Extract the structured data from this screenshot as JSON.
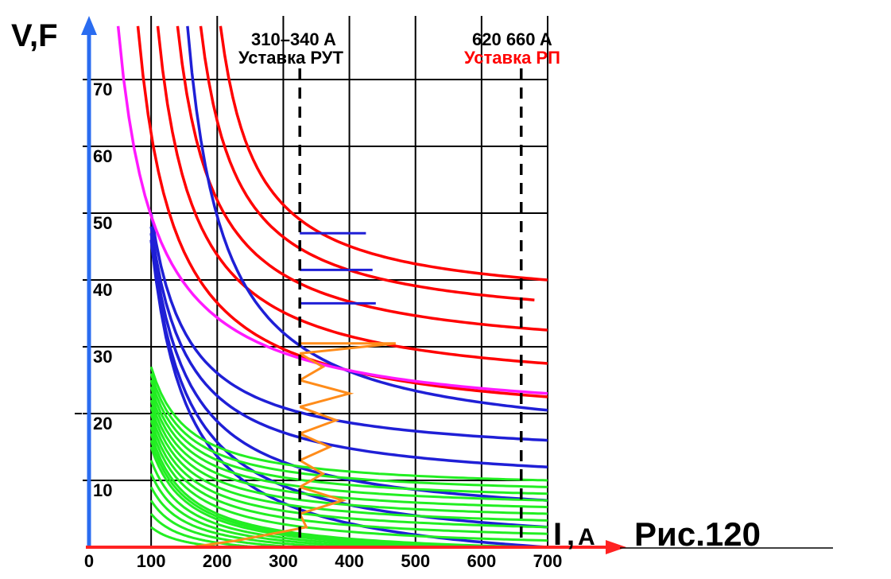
{
  "chart_data": {
    "type": "line",
    "title": "Рис.120",
    "ylabel": "V,F",
    "xlabel_main": "I",
    "xlabel_unit": "A",
    "xlim": [
      0,
      700
    ],
    "ylim": [
      0,
      70
    ],
    "x_ticks": [
      "0",
      "100",
      "200",
      "300",
      "400",
      "500",
      "600",
      "700"
    ],
    "y_ticks": [
      "10",
      "20",
      "30",
      "40",
      "50",
      "60",
      "70"
    ],
    "grid": true,
    "annotations": {
      "rut_range": "310–340 A",
      "rut_label": "Уставка  РУТ",
      "rp_range": "620  660 A",
      "rp_label": "Уставка  РП",
      "rut_current": 325,
      "rp_current": 660
    },
    "colors": {
      "red": "#ff0000",
      "blue": "#1f1fd6",
      "magenta": "#ff19ff",
      "green": "#22ee22",
      "orange": "#ff8c1a",
      "axis_v": "#2a6cf0",
      "axis_i": "#ff2222",
      "grid": "#000000"
    },
    "series": [
      {
        "color": "red",
        "x": [
          80,
          700
        ],
        "y": [
          78,
          22.5
        ]
      },
      {
        "color": "red",
        "x": [
          110,
          700
        ],
        "y": [
          78,
          27.5
        ]
      },
      {
        "color": "red",
        "x": [
          140,
          700
        ],
        "y": [
          78,
          32.5
        ]
      },
      {
        "color": "red",
        "x": [
          175,
          680
        ],
        "y": [
          78,
          37
        ]
      },
      {
        "color": "red",
        "x": [
          205,
          700
        ],
        "y": [
          78,
          40
        ]
      },
      {
        "color": "blue",
        "x": [
          155,
          700
        ],
        "y": [
          78,
          20.5
        ]
      },
      {
        "color": "blue",
        "x": [
          100,
          700
        ],
        "y": [
          50,
          16
        ]
      },
      {
        "color": "blue",
        "x": [
          100,
          700
        ],
        "y": [
          48,
          12
        ]
      },
      {
        "color": "blue",
        "x": [
          100,
          700
        ],
        "y": [
          47,
          7
        ]
      },
      {
        "color": "blue",
        "x": [
          100,
          700
        ],
        "y": [
          46,
          3
        ]
      },
      {
        "color": "blue",
        "x": [
          100,
          700
        ],
        "y": [
          46,
          0
        ]
      },
      {
        "color": "magenta",
        "x": [
          50,
          700
        ],
        "y": [
          78,
          23
        ]
      },
      {
        "color": "green",
        "x": [
          100,
          700
        ],
        "y": [
          27,
          10
        ]
      },
      {
        "color": "green",
        "x": [
          100,
          700
        ],
        "y": [
          26,
          9
        ]
      },
      {
        "color": "green",
        "x": [
          100,
          700
        ],
        "y": [
          25,
          8
        ]
      },
      {
        "color": "green",
        "x": [
          100,
          700
        ],
        "y": [
          24,
          7
        ]
      },
      {
        "color": "green",
        "x": [
          100,
          700
        ],
        "y": [
          23,
          6
        ]
      },
      {
        "color": "green",
        "x": [
          100,
          700
        ],
        "y": [
          22,
          5
        ]
      },
      {
        "color": "green",
        "x": [
          100,
          700
        ],
        "y": [
          21,
          4
        ]
      },
      {
        "color": "green",
        "x": [
          100,
          700
        ],
        "y": [
          20,
          3
        ]
      },
      {
        "color": "green",
        "x": [
          100,
          700
        ],
        "y": [
          19,
          2
        ]
      },
      {
        "color": "green",
        "x": [
          100,
          700
        ],
        "y": [
          18,
          1
        ]
      },
      {
        "color": "green",
        "x": [
          100,
          680
        ],
        "y": [
          17,
          0
        ]
      },
      {
        "color": "green",
        "x": [
          100,
          620
        ],
        "y": [
          16,
          0
        ]
      },
      {
        "color": "green",
        "x": [
          100,
          560
        ],
        "y": [
          15,
          0
        ]
      },
      {
        "color": "green",
        "x": [
          100,
          500
        ],
        "y": [
          13,
          0
        ]
      },
      {
        "color": "green",
        "x": [
          100,
          440
        ],
        "y": [
          11,
          0
        ]
      },
      {
        "color": "green",
        "x": [
          100,
          380
        ],
        "y": [
          9,
          0
        ]
      },
      {
        "color": "green",
        "x": [
          100,
          320
        ],
        "y": [
          7,
          0
        ]
      },
      {
        "color": "green",
        "x": [
          100,
          260
        ],
        "y": [
          5,
          0
        ]
      },
      {
        "color": "green",
        "x": [
          100,
          210
        ],
        "y": [
          3,
          0
        ]
      }
    ],
    "blue_steps": [
      {
        "x": [
          325,
          425
        ],
        "y": [
          47,
          47
        ]
      },
      {
        "x": [
          325,
          435
        ],
        "y": [
          41.5,
          41.5
        ]
      },
      {
        "x": [
          325,
          440
        ],
        "y": [
          36.5,
          36.5
        ]
      }
    ],
    "orange_steps": [
      {
        "x": [
          325,
          470,
          325
        ],
        "y": [
          30.5,
          30.5,
          29
        ]
      },
      {
        "x": [
          325,
          360,
          325
        ],
        "y": [
          29,
          27,
          25
        ]
      },
      {
        "x": [
          325,
          400,
          325
        ],
        "y": [
          25,
          23,
          21
        ]
      },
      {
        "x": [
          325,
          380,
          325
        ],
        "y": [
          21,
          19,
          17
        ]
      },
      {
        "x": [
          325,
          370,
          325
        ],
        "y": [
          17,
          15,
          13
        ]
      },
      {
        "x": [
          325,
          360,
          325
        ],
        "y": [
          13,
          11,
          9
        ]
      },
      {
        "x": [
          325,
          390,
          325
        ],
        "y": [
          9,
          7,
          5
        ]
      },
      {
        "x": [
          325,
          335,
          230
        ],
        "y": [
          5,
          3,
          1
        ]
      },
      {
        "x": [
          230,
          160
        ],
        "y": [
          1,
          0
        ]
      }
    ]
  }
}
